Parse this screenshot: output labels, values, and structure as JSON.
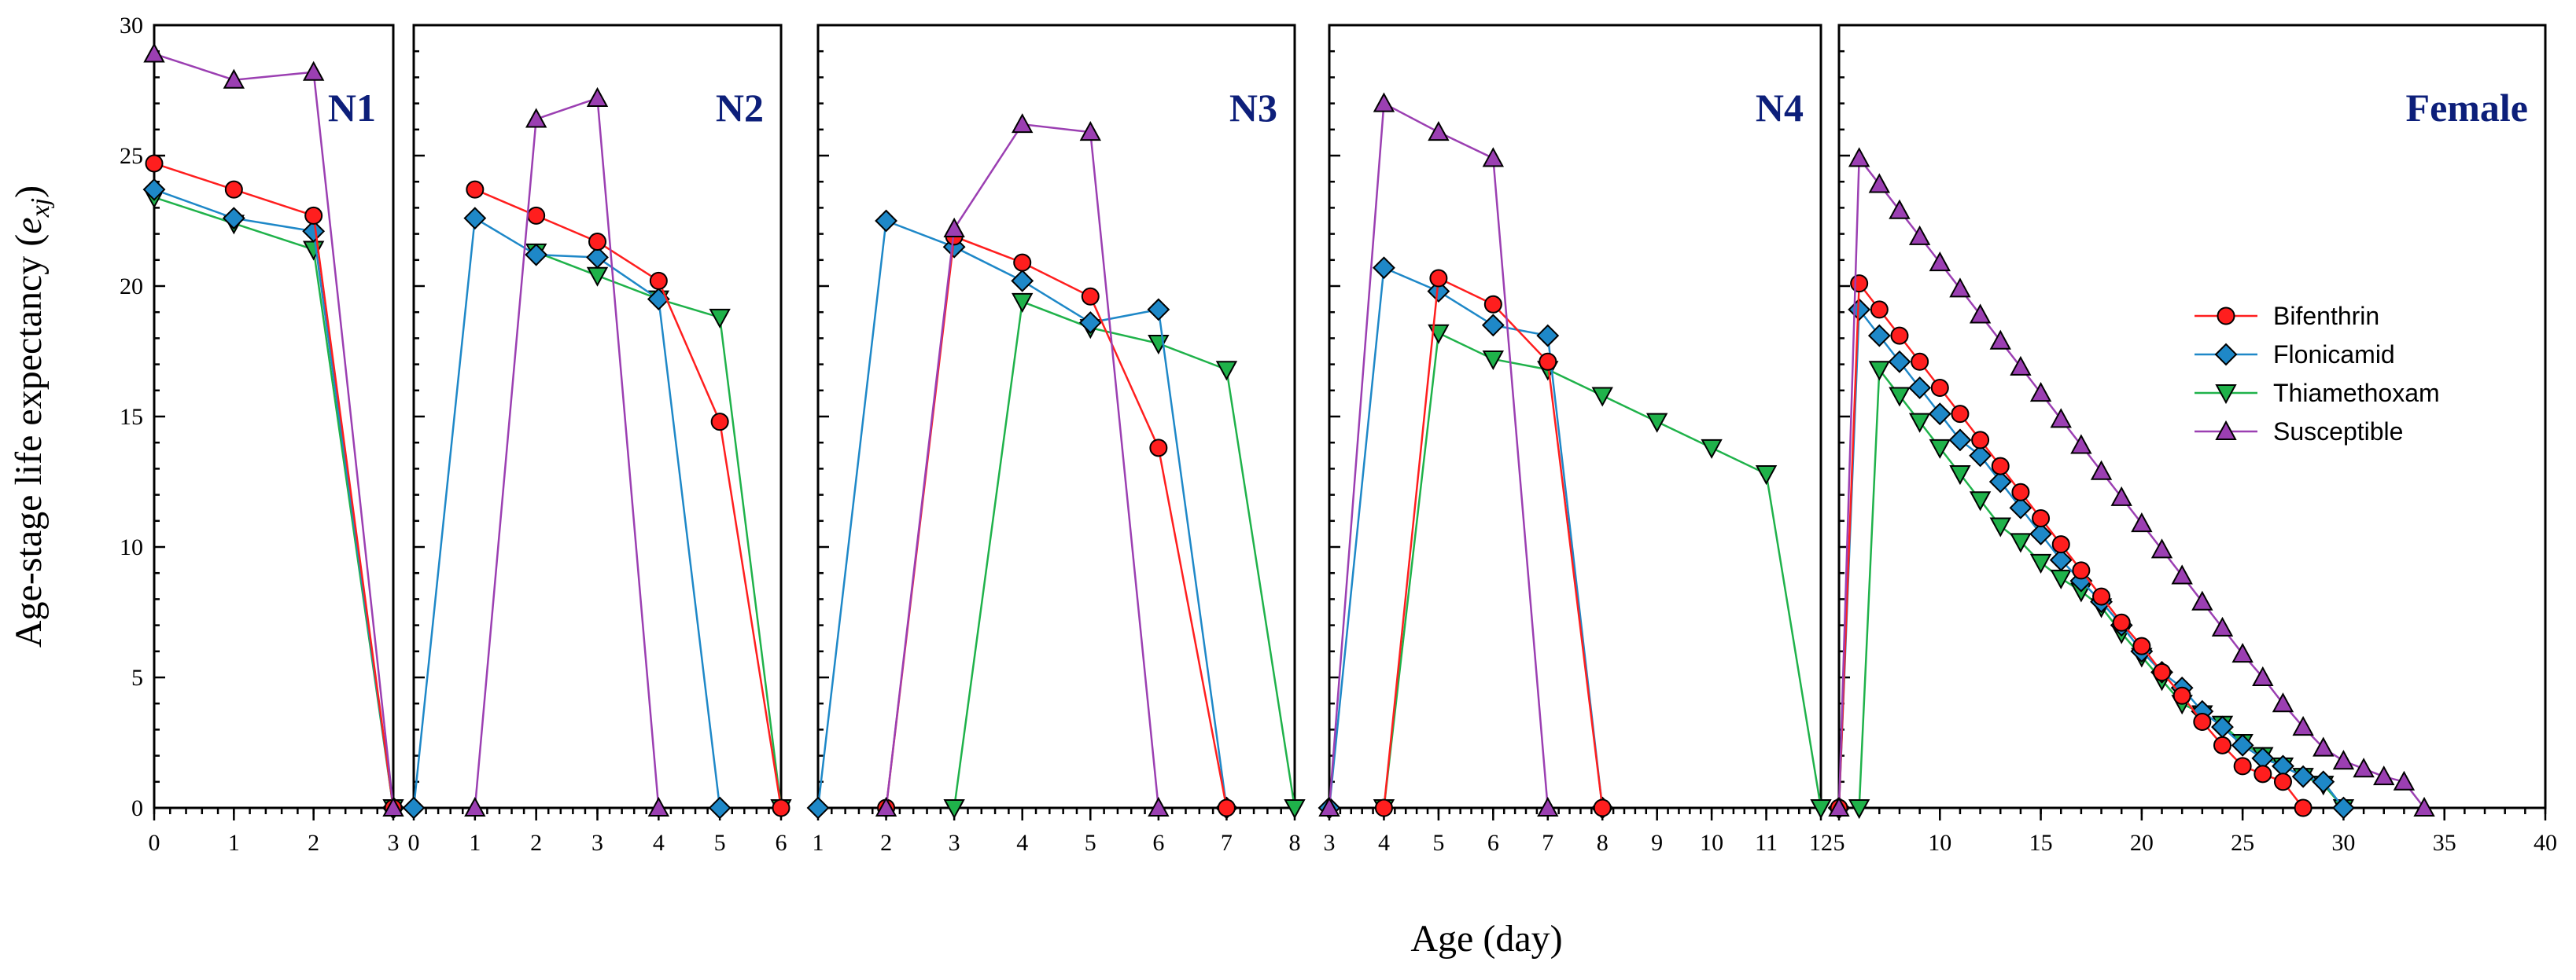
{
  "chart_data": {
    "type": "line",
    "ylabel": "Age-stage life expectancy",
    "ylabel_symbol": "e",
    "ylabel_subscript": "xj",
    "xlabel": "Age (day)",
    "ylim": [
      0,
      30
    ],
    "yticks": [
      0,
      5,
      10,
      15,
      20,
      25,
      30
    ],
    "colors": {
      "Bifenthrin": "#ff1e1e",
      "Flonicamid": "#1e88c8",
      "Thiamethoxam": "#1fb24a",
      "Susceptible": "#9b3fb2"
    },
    "legend": {
      "placement": "center-right of last panel",
      "entries": [
        "Bifenthrin",
        "Flonicamid",
        "Thiamethoxam",
        "Susceptible"
      ]
    },
    "panels": [
      {
        "title": "N1",
        "xlim": [
          0,
          3
        ],
        "xticks": [
          0,
          1,
          2,
          3
        ],
        "series": [
          {
            "name": "Bifenthrin",
            "x": [
              0,
              1,
              2,
              3
            ],
            "y": [
              24.7,
              23.7,
              22.7,
              0
            ]
          },
          {
            "name": "Flonicamid",
            "x": [
              0,
              1,
              2,
              3
            ],
            "y": [
              23.7,
              22.6,
              22.1,
              0
            ]
          },
          {
            "name": "Thiamethoxam",
            "x": [
              0,
              1,
              2,
              3
            ],
            "y": [
              23.4,
              22.4,
              21.4,
              0
            ]
          },
          {
            "name": "Susceptible",
            "x": [
              0,
              1,
              2,
              3
            ],
            "y": [
              28.9,
              27.9,
              28.2,
              0
            ]
          }
        ]
      },
      {
        "title": "N2",
        "xlim": [
          0,
          6
        ],
        "xticks": [
          0,
          1,
          2,
          3,
          4,
          5,
          6
        ],
        "series": [
          {
            "name": "Bifenthrin",
            "x": [
              1,
              2,
              3,
              4,
              5,
              6
            ],
            "y": [
              23.7,
              22.7,
              21.7,
              20.2,
              14.8,
              0
            ]
          },
          {
            "name": "Flonicamid",
            "x": [
              0,
              1,
              2,
              3,
              4,
              5
            ],
            "y": [
              0,
              22.6,
              21.2,
              21.1,
              19.5,
              0
            ]
          },
          {
            "name": "Thiamethoxam",
            "x": [
              2,
              3,
              4,
              5,
              6
            ],
            "y": [
              21.3,
              20.4,
              19.5,
              18.8,
              0
            ]
          },
          {
            "name": "Susceptible",
            "x": [
              1,
              2,
              3,
              4
            ],
            "y": [
              0,
              26.4,
              27.2,
              0
            ]
          }
        ]
      },
      {
        "title": "N3",
        "xlim": [
          1,
          8
        ],
        "xticks": [
          1,
          2,
          3,
          4,
          5,
          6,
          7,
          8
        ],
        "series": [
          {
            "name": "Bifenthrin",
            "x": [
              2,
              3,
              4,
              5,
              6,
              7
            ],
            "y": [
              0,
              21.9,
              20.9,
              19.6,
              13.8,
              0
            ]
          },
          {
            "name": "Flonicamid",
            "x": [
              1,
              2,
              3,
              4,
              5,
              6,
              7
            ],
            "y": [
              0,
              22.5,
              21.5,
              20.2,
              18.6,
              19.1,
              0
            ]
          },
          {
            "name": "Thiamethoxam",
            "x": [
              3,
              4,
              5,
              6,
              7,
              8
            ],
            "y": [
              0,
              19.4,
              18.4,
              17.8,
              16.8,
              0
            ]
          },
          {
            "name": "Susceptible",
            "x": [
              2,
              3,
              4,
              5,
              6
            ],
            "y": [
              0,
              22.2,
              26.2,
              25.9,
              0
            ]
          }
        ]
      },
      {
        "title": "N4",
        "xlim": [
          3,
          12
        ],
        "xticks": [
          3,
          4,
          5,
          6,
          7,
          8,
          9,
          10,
          11,
          12
        ],
        "series": [
          {
            "name": "Bifenthrin",
            "x": [
              4,
              5,
              6,
              7,
              8
            ],
            "y": [
              0,
              20.3,
              19.3,
              17.1,
              0
            ]
          },
          {
            "name": "Flonicamid",
            "x": [
              3,
              4,
              5,
              6,
              7,
              8
            ],
            "y": [
              0,
              20.7,
              19.8,
              18.5,
              18.1,
              0
            ]
          },
          {
            "name": "Thiamethoxam",
            "x": [
              4,
              5,
              6,
              7,
              8,
              9,
              10,
              11,
              12
            ],
            "y": [
              0,
              18.2,
              17.2,
              16.8,
              15.8,
              14.8,
              13.8,
              12.8,
              0
            ]
          },
          {
            "name": "Susceptible",
            "x": [
              3,
              4,
              5,
              6,
              7
            ],
            "y": [
              0,
              27.0,
              25.9,
              24.9,
              0
            ]
          }
        ]
      },
      {
        "title": "Female",
        "xlim": [
          5,
          40
        ],
        "xticks": [
          5,
          10,
          15,
          20,
          25,
          30,
          35,
          40
        ],
        "minor_step": 1,
        "series": [
          {
            "name": "Bifenthrin",
            "x": [
              5,
              6,
              7,
              8,
              9,
              10,
              11,
              12,
              13,
              14,
              15,
              16,
              17,
              18,
              19,
              20,
              21,
              22,
              23,
              24,
              25,
              26,
              27,
              28
            ],
            "y": [
              0,
              20.1,
              19.1,
              18.1,
              17.1,
              16.1,
              15.1,
              14.1,
              13.1,
              12.1,
              11.1,
              10.1,
              9.1,
              8.1,
              7.1,
              6.2,
              5.2,
              4.3,
              3.3,
              2.4,
              1.6,
              1.3,
              1.0,
              0
            ]
          },
          {
            "name": "Flonicamid",
            "x": [
              5,
              6,
              7,
              8,
              9,
              10,
              11,
              12,
              13,
              14,
              15,
              16,
              17,
              18,
              19,
              20,
              21,
              22,
              23,
              24,
              25,
              26,
              27,
              28,
              29,
              30
            ],
            "y": [
              0,
              19.1,
              18.1,
              17.1,
              16.1,
              15.1,
              14.1,
              13.5,
              12.5,
              11.5,
              10.5,
              9.5,
              8.7,
              7.9,
              7.0,
              6.0,
              5.2,
              4.6,
              3.7,
              3.1,
              2.4,
              1.9,
              1.6,
              1.2,
              1.0,
              0
            ]
          },
          {
            "name": "Thiamethoxam",
            "x": [
              6,
              7,
              8,
              9,
              10,
              11,
              12,
              13,
              14,
              15,
              16,
              17,
              18,
              19,
              20,
              21,
              22,
              23,
              24,
              25,
              26,
              27,
              28,
              29,
              30
            ],
            "y": [
              0,
              16.8,
              15.8,
              14.8,
              13.8,
              12.8,
              11.8,
              10.8,
              10.2,
              9.4,
              8.8,
              8.3,
              7.7,
              6.7,
              5.8,
              4.9,
              4.0,
              3.6,
              3.2,
              2.5,
              2.0,
              1.6,
              1.2,
              0.9,
              0
            ]
          },
          {
            "name": "Susceptible",
            "x": [
              5,
              6,
              7,
              8,
              9,
              10,
              11,
              12,
              13,
              14,
              15,
              16,
              17,
              18,
              19,
              20,
              21,
              22,
              23,
              24,
              25,
              26,
              27,
              28,
              29,
              30,
              31,
              32,
              33,
              34
            ],
            "y": [
              0,
              24.9,
              23.9,
              22.9,
              21.9,
              20.9,
              19.9,
              18.9,
              17.9,
              16.9,
              15.9,
              14.9,
              13.9,
              12.9,
              11.9,
              10.9,
              9.9,
              8.9,
              7.9,
              6.9,
              5.9,
              5.0,
              4.0,
              3.1,
              2.3,
              1.8,
              1.5,
              1.2,
              1.0,
              0
            ]
          }
        ]
      }
    ]
  }
}
